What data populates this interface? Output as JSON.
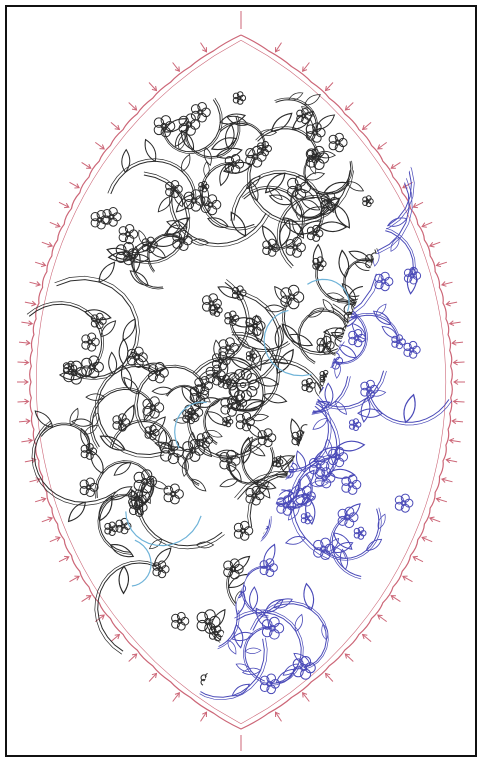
{
  "colors": {
    "frame": "#111111",
    "border_outline": "#cc6677",
    "pattern_dark": "#2b2b2b",
    "pattern_blue": "#4a4ab8",
    "pattern_cyan": "#6fb3d8",
    "background": "#ffffff"
  },
  "icons": [
    "arabesque-medallion-icon",
    "scalloped-border-icon",
    "floral-scroll-icon",
    "rosette-icon"
  ]
}
